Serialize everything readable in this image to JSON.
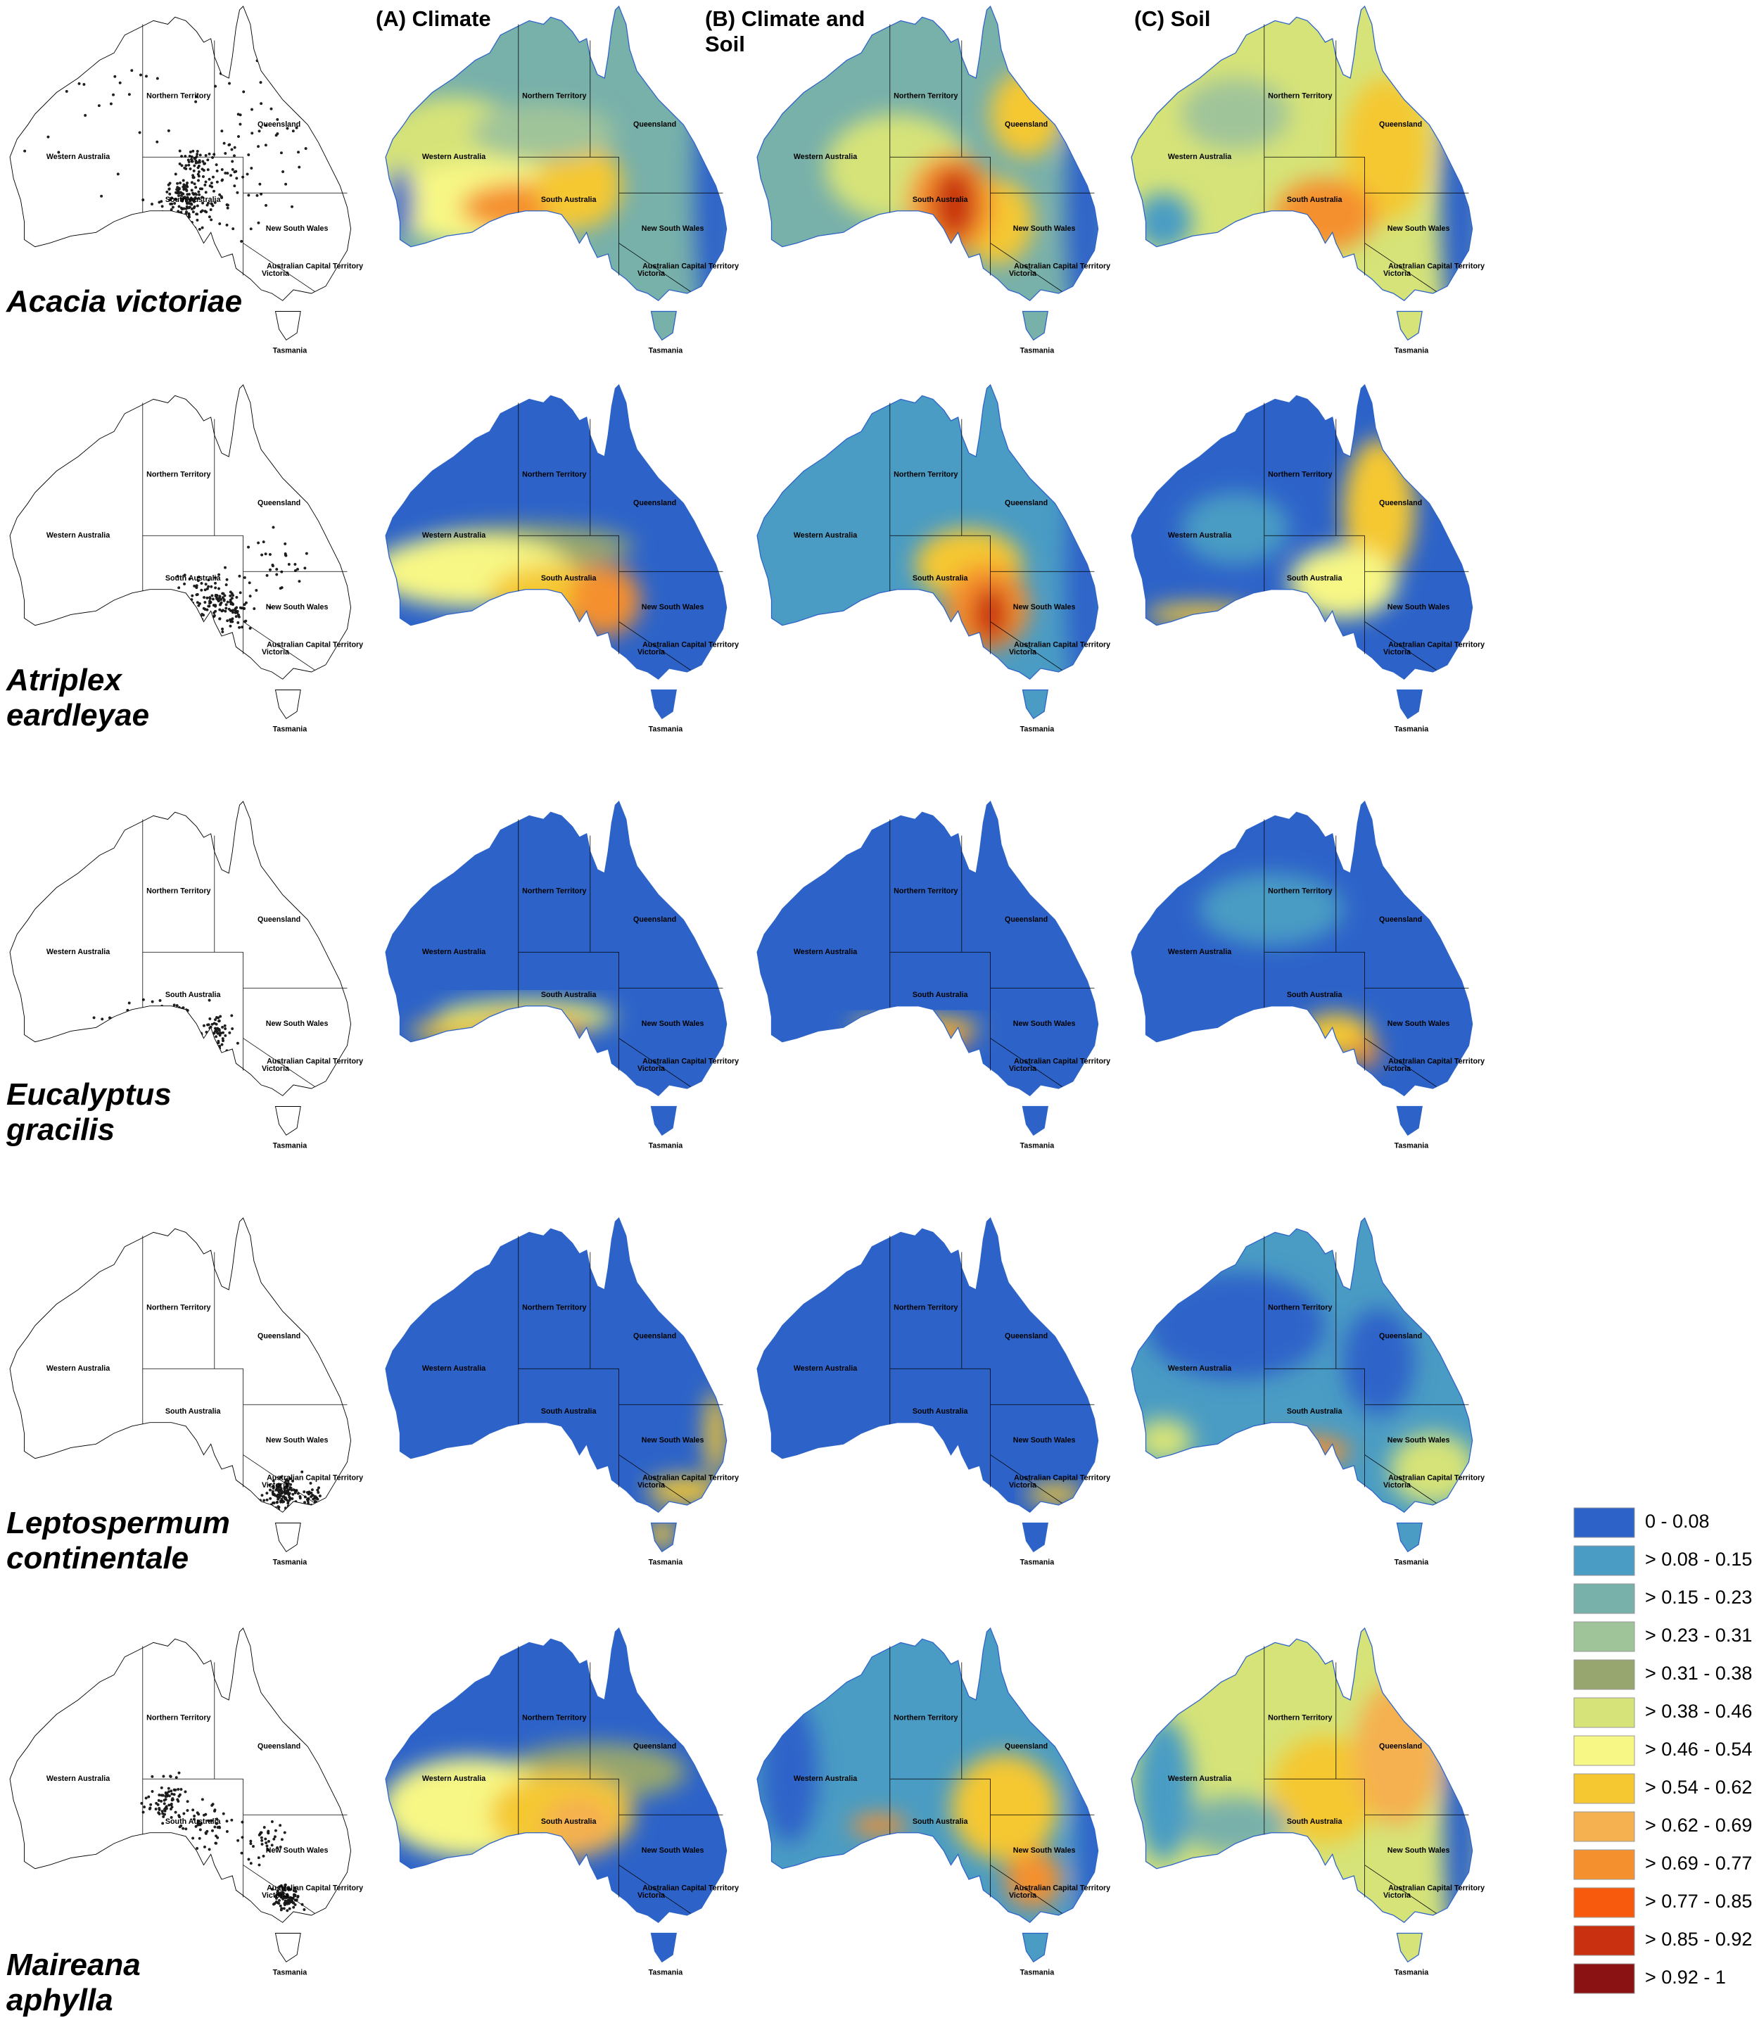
{
  "column_headers": [
    "(A) Climate",
    "(B) Climate and Soil",
    "(C) Soil"
  ],
  "species": [
    "Acacia victoriae",
    "Atriplex eardleyae",
    "Eucalyptus gracilis",
    "Leptospermum continentale",
    "Maireana aphylla"
  ],
  "state_labels": [
    "Northern Territory",
    "Queensland",
    "Western Australia",
    "South Australia",
    "New South Wales",
    "Australian Capital Territory",
    "Victoria",
    "Tasmania"
  ],
  "legend": {
    "items": [
      {
        "label": "0 - 0.08",
        "color": "#2d63c9"
      },
      {
        "label": "> 0.08 - 0.15",
        "color": "#4a9cc4"
      },
      {
        "label": "> 0.15 - 0.23",
        "color": "#78b0aa"
      },
      {
        "label": "> 0.23 - 0.31",
        "color": "#a0c49a"
      },
      {
        "label": "> 0.31 - 0.38",
        "color": "#96a66e"
      },
      {
        "label": "> 0.38 - 0.46",
        "color": "#d6e378"
      },
      {
        "label": "> 0.46 - 0.54",
        "color": "#f7f785"
      },
      {
        "label": "> 0.54 - 0.62",
        "color": "#f5c832"
      },
      {
        "label": "> 0.62 - 0.69",
        "color": "#f5b050"
      },
      {
        "label": "> 0.69 - 0.77",
        "color": "#f5902e"
      },
      {
        "label": "> 0.77 - 0.85",
        "color": "#f75a0c"
      },
      {
        "label": "> 0.85 - 0.92",
        "color": "#c8300f"
      },
      {
        "label": "> 0.92 - 1",
        "color": "#8b1212"
      }
    ]
  }
}
